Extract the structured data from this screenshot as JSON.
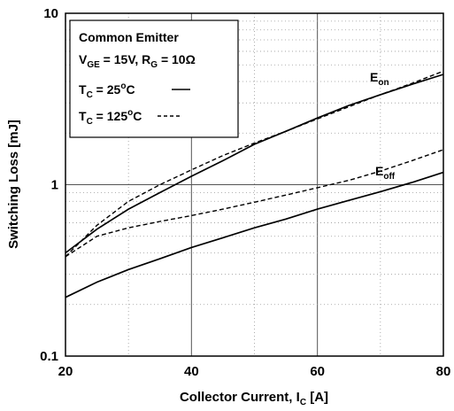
{
  "chart_data": {
    "type": "line",
    "xlabel_main": "Collector Current, I",
    "xlabel_sub": "C",
    "xlabel_unit": " [A]",
    "ylabel": "Switching Loss [mJ]",
    "xlim": [
      20,
      80
    ],
    "ylim": [
      0.1,
      10
    ],
    "yscale": "log",
    "grid": true,
    "x_ticks": [
      "20",
      "40",
      "60",
      "80"
    ],
    "y_ticks": [
      "0.1",
      "1",
      "10"
    ],
    "legend": {
      "line1": "Common Emitter",
      "line2": {
        "v": "V",
        "v_sub": "GE",
        "mid": " = 15V, R",
        "r_sub": "G",
        "end": " = 10Ω"
      },
      "line3": {
        "t": "T",
        "t_sub": "C",
        "mid": " = 25",
        "sup": "o",
        "end": "C"
      },
      "line4": {
        "t": "T",
        "t_sub": "C",
        "mid": " = 125",
        "sup": "o",
        "end": "C"
      }
    },
    "annotations": [
      {
        "main": "E",
        "sub": "on"
      },
      {
        "main": "E",
        "sub": "off"
      }
    ],
    "series": [
      {
        "style": "solid",
        "points": [
          [
            20,
            0.4
          ],
          [
            25,
            0.55
          ],
          [
            30,
            0.72
          ],
          [
            35,
            0.9
          ],
          [
            40,
            1.12
          ],
          [
            45,
            1.38
          ],
          [
            50,
            1.72
          ],
          [
            55,
            2.05
          ],
          [
            60,
            2.45
          ],
          [
            65,
            2.9
          ],
          [
            70,
            3.35
          ],
          [
            75,
            3.85
          ],
          [
            80,
            4.4
          ]
        ]
      },
      {
        "style": "dashed",
        "points": [
          [
            20,
            0.38
          ],
          [
            25,
            0.58
          ],
          [
            30,
            0.8
          ],
          [
            35,
            1.0
          ],
          [
            40,
            1.22
          ],
          [
            45,
            1.48
          ],
          [
            50,
            1.75
          ],
          [
            55,
            2.05
          ],
          [
            60,
            2.42
          ],
          [
            65,
            2.85
          ],
          [
            70,
            3.35
          ],
          [
            75,
            3.9
          ],
          [
            80,
            4.6
          ]
        ]
      },
      {
        "style": "solid",
        "points": [
          [
            20,
            0.22
          ],
          [
            25,
            0.27
          ],
          [
            30,
            0.32
          ],
          [
            35,
            0.37
          ],
          [
            40,
            0.43
          ],
          [
            45,
            0.49
          ],
          [
            50,
            0.56
          ],
          [
            55,
            0.63
          ],
          [
            60,
            0.72
          ],
          [
            65,
            0.81
          ],
          [
            70,
            0.91
          ],
          [
            75,
            1.03
          ],
          [
            80,
            1.18
          ]
        ]
      },
      {
        "style": "dashed",
        "points": [
          [
            20,
            0.38
          ],
          [
            25,
            0.5
          ],
          [
            30,
            0.56
          ],
          [
            35,
            0.61
          ],
          [
            40,
            0.66
          ],
          [
            45,
            0.72
          ],
          [
            50,
            0.79
          ],
          [
            55,
            0.87
          ],
          [
            60,
            0.96
          ],
          [
            65,
            1.06
          ],
          [
            70,
            1.2
          ],
          [
            75,
            1.38
          ],
          [
            80,
            1.6
          ]
        ]
      }
    ]
  }
}
